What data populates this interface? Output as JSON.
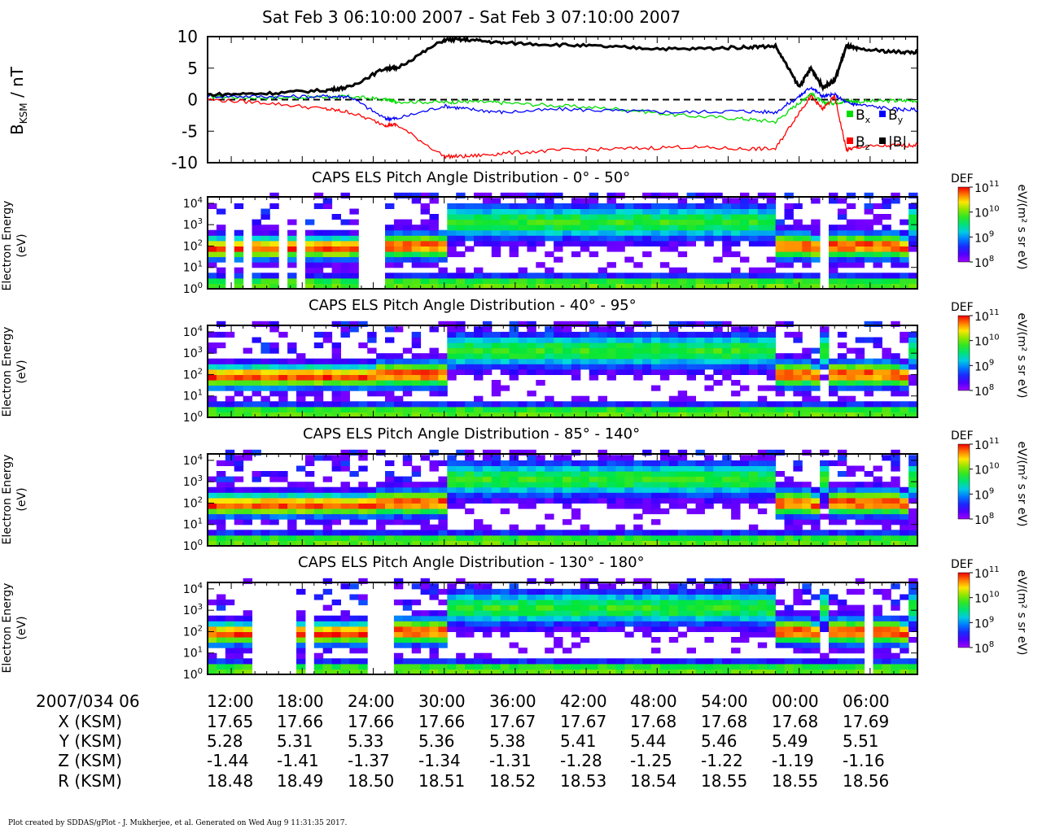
{
  "header": {
    "title": "Sat Feb 3 06:10:00 2007 - Sat Feb 3 07:10:00 2007"
  },
  "mag_panel": {
    "ylabel_main": "B",
    "ylabel_sub": "KSM",
    "ylabel_unit": " / nT",
    "yticks": [
      "10",
      "5",
      "0",
      "-5",
      "-10"
    ],
    "legend": [
      {
        "name": "B",
        "sub": "x",
        "color": "#00dd00"
      },
      {
        "name": "B",
        "sub": "y",
        "color": "#0000ff"
      },
      {
        "name": "B",
        "sub": "z",
        "color": "#ff0000"
      },
      {
        "name": "|B|",
        "sub": "",
        "color": "#000000"
      }
    ]
  },
  "spectro_panels": [
    {
      "title": "CAPS ELS Pitch Angle Distribution - 0° - 50°",
      "ylabel1": "Electron Energy",
      "ylabel2": "(eV)"
    },
    {
      "title": "CAPS ELS Pitch Angle Distribution - 40° - 95°",
      "ylabel1": "Electron Energy",
      "ylabel2": "(eV)"
    },
    {
      "title": "CAPS ELS Pitch Angle Distribution - 85° - 140°",
      "ylabel1": "Electron Energy",
      "ylabel2": "(eV)"
    },
    {
      "title": "CAPS ELS Pitch Angle Distribution - 130° - 180°",
      "ylabel1": "Electron Energy",
      "ylabel2": "(eV)"
    }
  ],
  "colorbar": {
    "label": "DEF",
    "unit": "eV/(m² s sr eV)",
    "ticks": [
      "11",
      "10",
      "9",
      "8"
    ],
    "tick_base": "10"
  },
  "ephemeris": {
    "date_label": "2007/034 06",
    "times": [
      "12:00",
      "18:00",
      "24:00",
      "30:00",
      "36:00",
      "42:00",
      "48:00",
      "54:00",
      "00:00",
      "06:00"
    ],
    "rows": [
      {
        "label": "X (KSM)",
        "values": [
          "17.65",
          "17.66",
          "17.66",
          "17.66",
          "17.67",
          "17.67",
          "17.68",
          "17.68",
          "17.68",
          "17.69"
        ]
      },
      {
        "label": "Y (KSM)",
        "values": [
          "5.28",
          "5.31",
          "5.33",
          "5.36",
          "5.38",
          "5.41",
          "5.44",
          "5.46",
          "5.49",
          "5.51"
        ]
      },
      {
        "label": "Z (KSM)",
        "values": [
          "-1.44",
          "-1.41",
          "-1.37",
          "-1.34",
          "-1.31",
          "-1.28",
          "-1.25",
          "-1.22",
          "-1.19",
          "-1.16"
        ]
      },
      {
        "label": "R (KSM)",
        "values": [
          "18.48",
          "18.49",
          "18.50",
          "18.51",
          "18.52",
          "18.53",
          "18.54",
          "18.55",
          "18.55",
          "18.56"
        ]
      }
    ]
  },
  "footer": "Plot created by SDDAS/gPlot - J. Mukherjee, et al.  Generated on Wed Aug 9 11:31:35 2017.",
  "chart_data": [
    {
      "type": "line",
      "title": "Sat Feb 3 06:10:00 2007 - Sat Feb 3 07:10:00 2007",
      "ylabel": "B KSM / nT",
      "ylim": [
        -10,
        10
      ],
      "x_minutes_after_0610": [
        0,
        5,
        10,
        12,
        15,
        16,
        20,
        22,
        25,
        30,
        35,
        40,
        45,
        48,
        50,
        51,
        52,
        53,
        54,
        55,
        58,
        60
      ],
      "series": [
        {
          "name": "Bx",
          "color": "#00dd00",
          "values": [
            0.5,
            0.3,
            0.4,
            0.5,
            0.0,
            -0.3,
            -0.4,
            -0.3,
            -0.5,
            -1.0,
            -1.5,
            -2.5,
            -3.0,
            -3.5,
            -0.5,
            1.0,
            -0.5,
            -0.5,
            -0.2,
            -0.3,
            -0.2,
            -0.1
          ]
        },
        {
          "name": "By",
          "color": "#0000ff",
          "values": [
            0.6,
            0.5,
            0.5,
            0.5,
            -3.0,
            -3.0,
            -1.0,
            -1.5,
            -2.0,
            -1.5,
            -1.8,
            -2.0,
            -1.8,
            -2.0,
            0.5,
            2.0,
            0.5,
            0.8,
            -0.5,
            -0.8,
            -1.5,
            -1.6
          ]
        },
        {
          "name": "Bz",
          "color": "#ff0000",
          "values": [
            0.0,
            -0.5,
            -1.5,
            -2.0,
            -4.0,
            -4.0,
            -9.0,
            -9.0,
            -8.5,
            -8.0,
            -7.8,
            -7.5,
            -7.8,
            -7.8,
            -2.0,
            0.5,
            -1.5,
            0.5,
            -8.0,
            -7.5,
            -7.3,
            -7.2
          ]
        },
        {
          "name": "|B|",
          "color": "#000000",
          "values": [
            0.8,
            1.0,
            1.5,
            2.0,
            5.0,
            5.0,
            9.5,
            9.5,
            9.0,
            8.7,
            8.3,
            8.0,
            8.3,
            8.5,
            2.0,
            5.0,
            2.0,
            3.0,
            8.5,
            8.0,
            7.6,
            7.5
          ]
        }
      ]
    },
    {
      "type": "heatmap",
      "title": "CAPS ELS Pitch Angle Distribution - 0° - 50°",
      "ylabel": "Electron Energy (eV)",
      "ylim": [
        1,
        20000
      ],
      "yscale": "log",
      "colorbar": {
        "label": "DEF",
        "range": [
          100000000.0,
          100000000000.0
        ],
        "scale": "log",
        "unit": "eV/(m² s sr eV)"
      }
    },
    {
      "type": "heatmap",
      "title": "CAPS ELS Pitch Angle Distribution - 40° - 95°",
      "ylabel": "Electron Energy (eV)",
      "ylim": [
        1,
        20000
      ],
      "yscale": "log",
      "colorbar": {
        "label": "DEF",
        "range": [
          100000000.0,
          100000000000.0
        ],
        "scale": "log",
        "unit": "eV/(m² s sr eV)"
      }
    },
    {
      "type": "heatmap",
      "title": "CAPS ELS Pitch Angle Distribution - 85° - 140°",
      "ylabel": "Electron Energy (eV)",
      "ylim": [
        1,
        20000
      ],
      "yscale": "log",
      "colorbar": {
        "label": "DEF",
        "range": [
          100000000.0,
          100000000000.0
        ],
        "scale": "log",
        "unit": "eV/(m² s sr eV)"
      }
    },
    {
      "type": "heatmap",
      "title": "CAPS ELS Pitch Angle Distribution - 130° - 180°",
      "ylabel": "Electron Energy (eV)",
      "ylim": [
        1,
        20000
      ],
      "yscale": "log",
      "colorbar": {
        "label": "DEF",
        "range": [
          100000000.0,
          100000000000.0
        ],
        "scale": "log",
        "unit": "eV/(m² s sr eV)"
      }
    }
  ]
}
